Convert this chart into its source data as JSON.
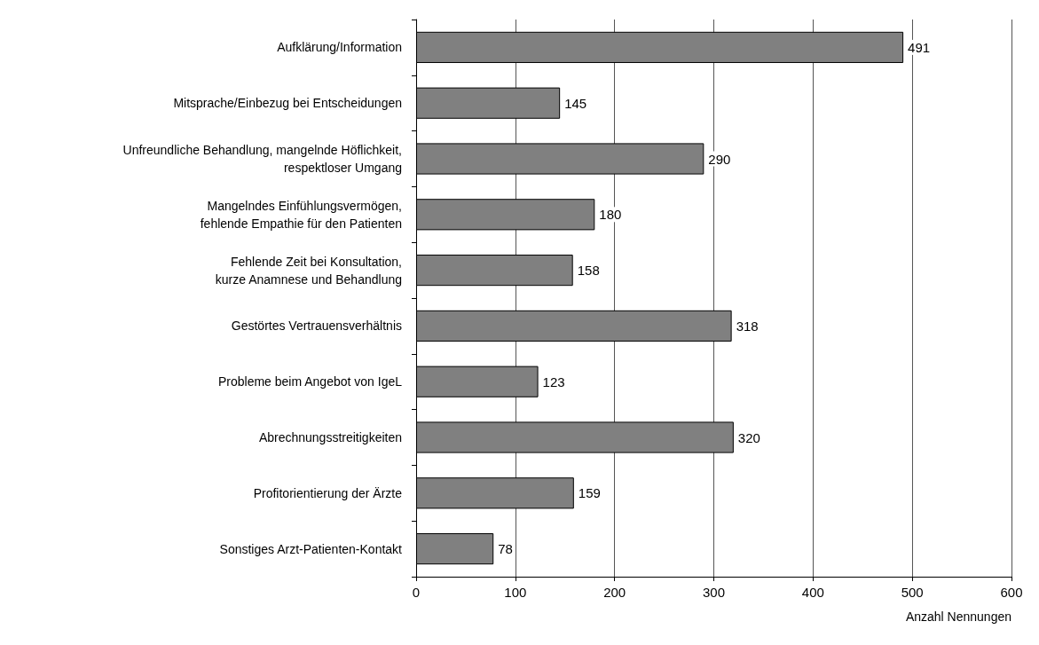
{
  "chart_data": {
    "type": "bar",
    "orientation": "horizontal",
    "xlabel": "Anzahl Nennungen",
    "categories": [
      "Aufklärung/Information",
      "Mitsprache/Einbezug bei Entscheidungen",
      "Unfreundliche Behandlung, mangelnde Höflichkeit,\nrespektloser Umgang",
      "Mangelndes Einfühlungsvermögen,\nfehlende Empathie für den Patienten",
      "Fehlende Zeit bei Konsultation,\nkurze Anamnese und Behandlung",
      "Gestörtes Vertrauensverhältnis",
      "Probleme beim Angebot von IgeL",
      "Abrechnungsstreitigkeiten",
      "Profitorientierung der Ärzte",
      "Sonstiges Arzt-Patienten-Kontakt"
    ],
    "values": [
      491,
      145,
      290,
      180,
      158,
      318,
      123,
      320,
      159,
      78
    ],
    "color": "#808080",
    "data_labels": true,
    "xlim": [
      0,
      600
    ],
    "xticks": [
      0,
      100,
      200,
      300,
      400,
      500,
      600
    ],
    "grid": "x"
  }
}
